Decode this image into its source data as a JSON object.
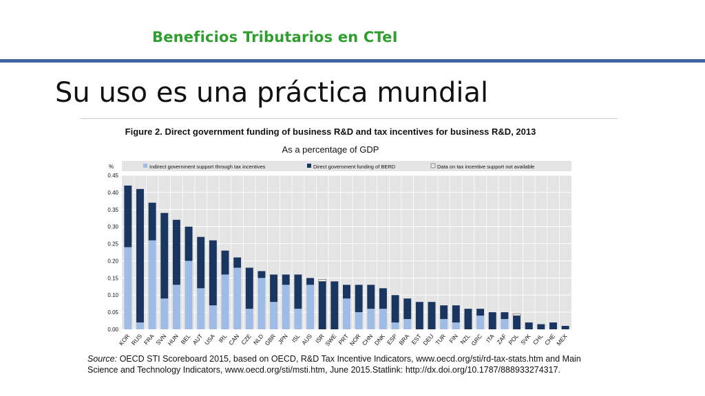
{
  "slide": {
    "header": "Beneficios Tributarios en CTeI",
    "title": "Su uso es una práctica mundial"
  },
  "colors": {
    "header_text": "#2e9e2e",
    "header_rule": "#3f64a0",
    "tax": "#9fbce6",
    "direct": "#1b3561",
    "na": "#e8e8e8",
    "plot_bg": "#e4e4e4"
  },
  "chart_data": {
    "type": "bar",
    "stacked": true,
    "title": "Figure 2. Direct government funding of business R&D and tax incentives for business R&D, 2013",
    "subtitle": "As a percentage of GDP",
    "ylabel": "%",
    "ylim": [
      0,
      0.45
    ],
    "yticks": [
      "0.45",
      "0.40",
      "0.35",
      "0.30",
      "0.25",
      "0.20",
      "0.15",
      "0.10",
      "0.05",
      "0.00"
    ],
    "legend_position": "top",
    "grid": true,
    "categories": [
      "KOR",
      "RUS",
      "FRA",
      "SVN",
      "HUN",
      "BEL",
      "AUT",
      "USA",
      "IRL",
      "CAN",
      "CZE",
      "NLD",
      "GBR",
      "JPN",
      "ISL",
      "AUS",
      "ISR",
      "SWE",
      "PRT",
      "NOR",
      "CHN",
      "DNK",
      "ESP",
      "BRA",
      "EST",
      "DEU",
      "TUR",
      "FIN",
      "NZL",
      "GRC",
      "ITA",
      "ZAF",
      "POL",
      "SVK",
      "CHL",
      "CHE",
      "MEX"
    ],
    "series": [
      {
        "name": "Indirect government support through tax incentives",
        "values": [
          0.24,
          0.02,
          0.26,
          0.09,
          0.13,
          0.2,
          0.12,
          0.07,
          0.16,
          0.18,
          0.06,
          0.15,
          0.08,
          0.13,
          0.06,
          0.13,
          0,
          0,
          0.09,
          0.05,
          0.06,
          0.06,
          0.02,
          0.03,
          0,
          0,
          0.03,
          0.02,
          0,
          0.04,
          0,
          0.03,
          0,
          0,
          0,
          0,
          0
        ]
      },
      {
        "name": "Direct government funding of BERD",
        "values": [
          0.18,
          0.39,
          0.11,
          0.25,
          0.19,
          0.1,
          0.15,
          0.19,
          0.07,
          0.03,
          0.12,
          0.02,
          0.08,
          0.03,
          0.1,
          0.02,
          0.14,
          0.14,
          0.04,
          0.08,
          0.07,
          0.06,
          0.08,
          0.06,
          0.08,
          0.08,
          0.04,
          0.05,
          0.06,
          0.02,
          0.05,
          0.02,
          0.04,
          0.02,
          0.015,
          0.02,
          0.01
        ]
      },
      {
        "name": "Data on tax incentive support not available",
        "values": [
          0,
          0,
          0,
          0,
          0,
          0,
          0,
          0,
          0,
          0,
          0,
          0,
          0,
          0,
          0,
          0,
          0.006,
          0,
          0,
          0,
          0,
          0,
          0,
          0,
          0,
          0,
          0,
          0,
          0,
          0,
          0,
          0,
          0.006,
          0,
          0,
          0,
          0
        ]
      }
    ]
  },
  "source": {
    "label": "Source:",
    "line1": " OECD STI Scoreboard 2015, based on OECD, R&D Tax Incentive Indicators, www.oecd.org/sti/rd-tax-stats.htm and Main",
    "line2": "Science and Technology Indicators, www.oecd.org/sti/msti.htm, June 2015.Statlink: http://dx.doi.org/10.1787/888933274317."
  }
}
